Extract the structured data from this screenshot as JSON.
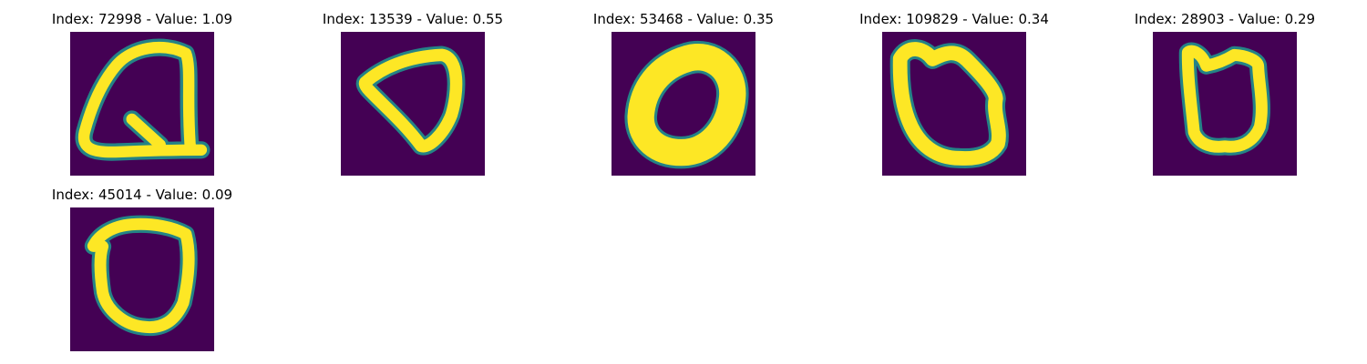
{
  "colors": {
    "background": "#440154",
    "stroke_core": "#fde725",
    "stroke_edge": "#21918c",
    "stroke_mid": "#5ec962"
  },
  "panels": [
    {
      "title": "Index: 72998 - Value: 1.09",
      "image_alt": "handwritten-digit-72998"
    },
    {
      "title": "Index: 13539 - Value: 0.55",
      "image_alt": "handwritten-digit-13539"
    },
    {
      "title": "Index: 53468 - Value: 0.35",
      "image_alt": "handwritten-digit-53468"
    },
    {
      "title": "Index: 109829 - Value: 0.34",
      "image_alt": "handwritten-digit-109829"
    },
    {
      "title": "Index: 28903 - Value: 0.29",
      "image_alt": "handwritten-digit-28903"
    },
    {
      "title": "Index: 45014 - Value: 0.09",
      "image_alt": "handwritten-digit-45014"
    }
  ]
}
